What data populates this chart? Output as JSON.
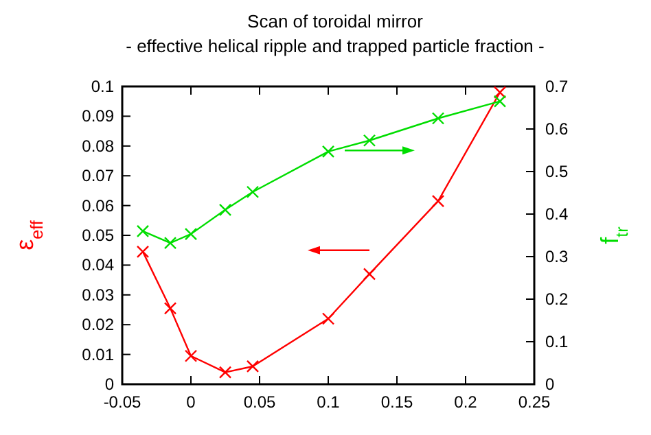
{
  "chart_data": {
    "type": "line",
    "title": "Scan of toroidal mirror",
    "subtitle": "- effective helical ripple and trapped particle fraction -",
    "ylabel": "ε$_{eff}$",
    "y2label": "f$_{tr}$",
    "x": [
      -0.035,
      -0.015,
      0,
      0.025,
      0.045,
      0.1,
      0.13,
      0.18,
      0.225
    ],
    "series": [
      {
        "color": "#ff0000",
        "values": [
          0.0445,
          0.0255,
          0.0095,
          0.004,
          0.006,
          0.022,
          0.037,
          0.0615,
          0.098
        ]
      },
      {
        "color": "#00dd00",
        "axis": "y2",
        "values": [
          0.36,
          0.332,
          0.353,
          0.41,
          0.452,
          0.547,
          0.573,
          0.625,
          0.665
        ]
      }
    ],
    "xlim": [
      -0.05,
      0.25
    ],
    "xticks": [
      {
        "value": -0.05,
        "label": "-0.05"
      },
      0,
      0.05,
      0.1,
      0.15,
      0.2,
      0.25
    ],
    "ylim": [
      0,
      0.1
    ],
    "yticks": [
      0,
      0.01,
      0.02,
      0.03,
      0.04,
      0.05,
      0.06,
      0.07,
      0.08,
      0.09,
      0.1
    ],
    "y2lim": [
      0,
      0.7
    ],
    "y2ticks": [
      0,
      0.1,
      0.2,
      0.3,
      0.4,
      0.5,
      0.6,
      0.7
    ],
    "marker": "cross",
    "line_style": "solid",
    "grid": false
  }
}
